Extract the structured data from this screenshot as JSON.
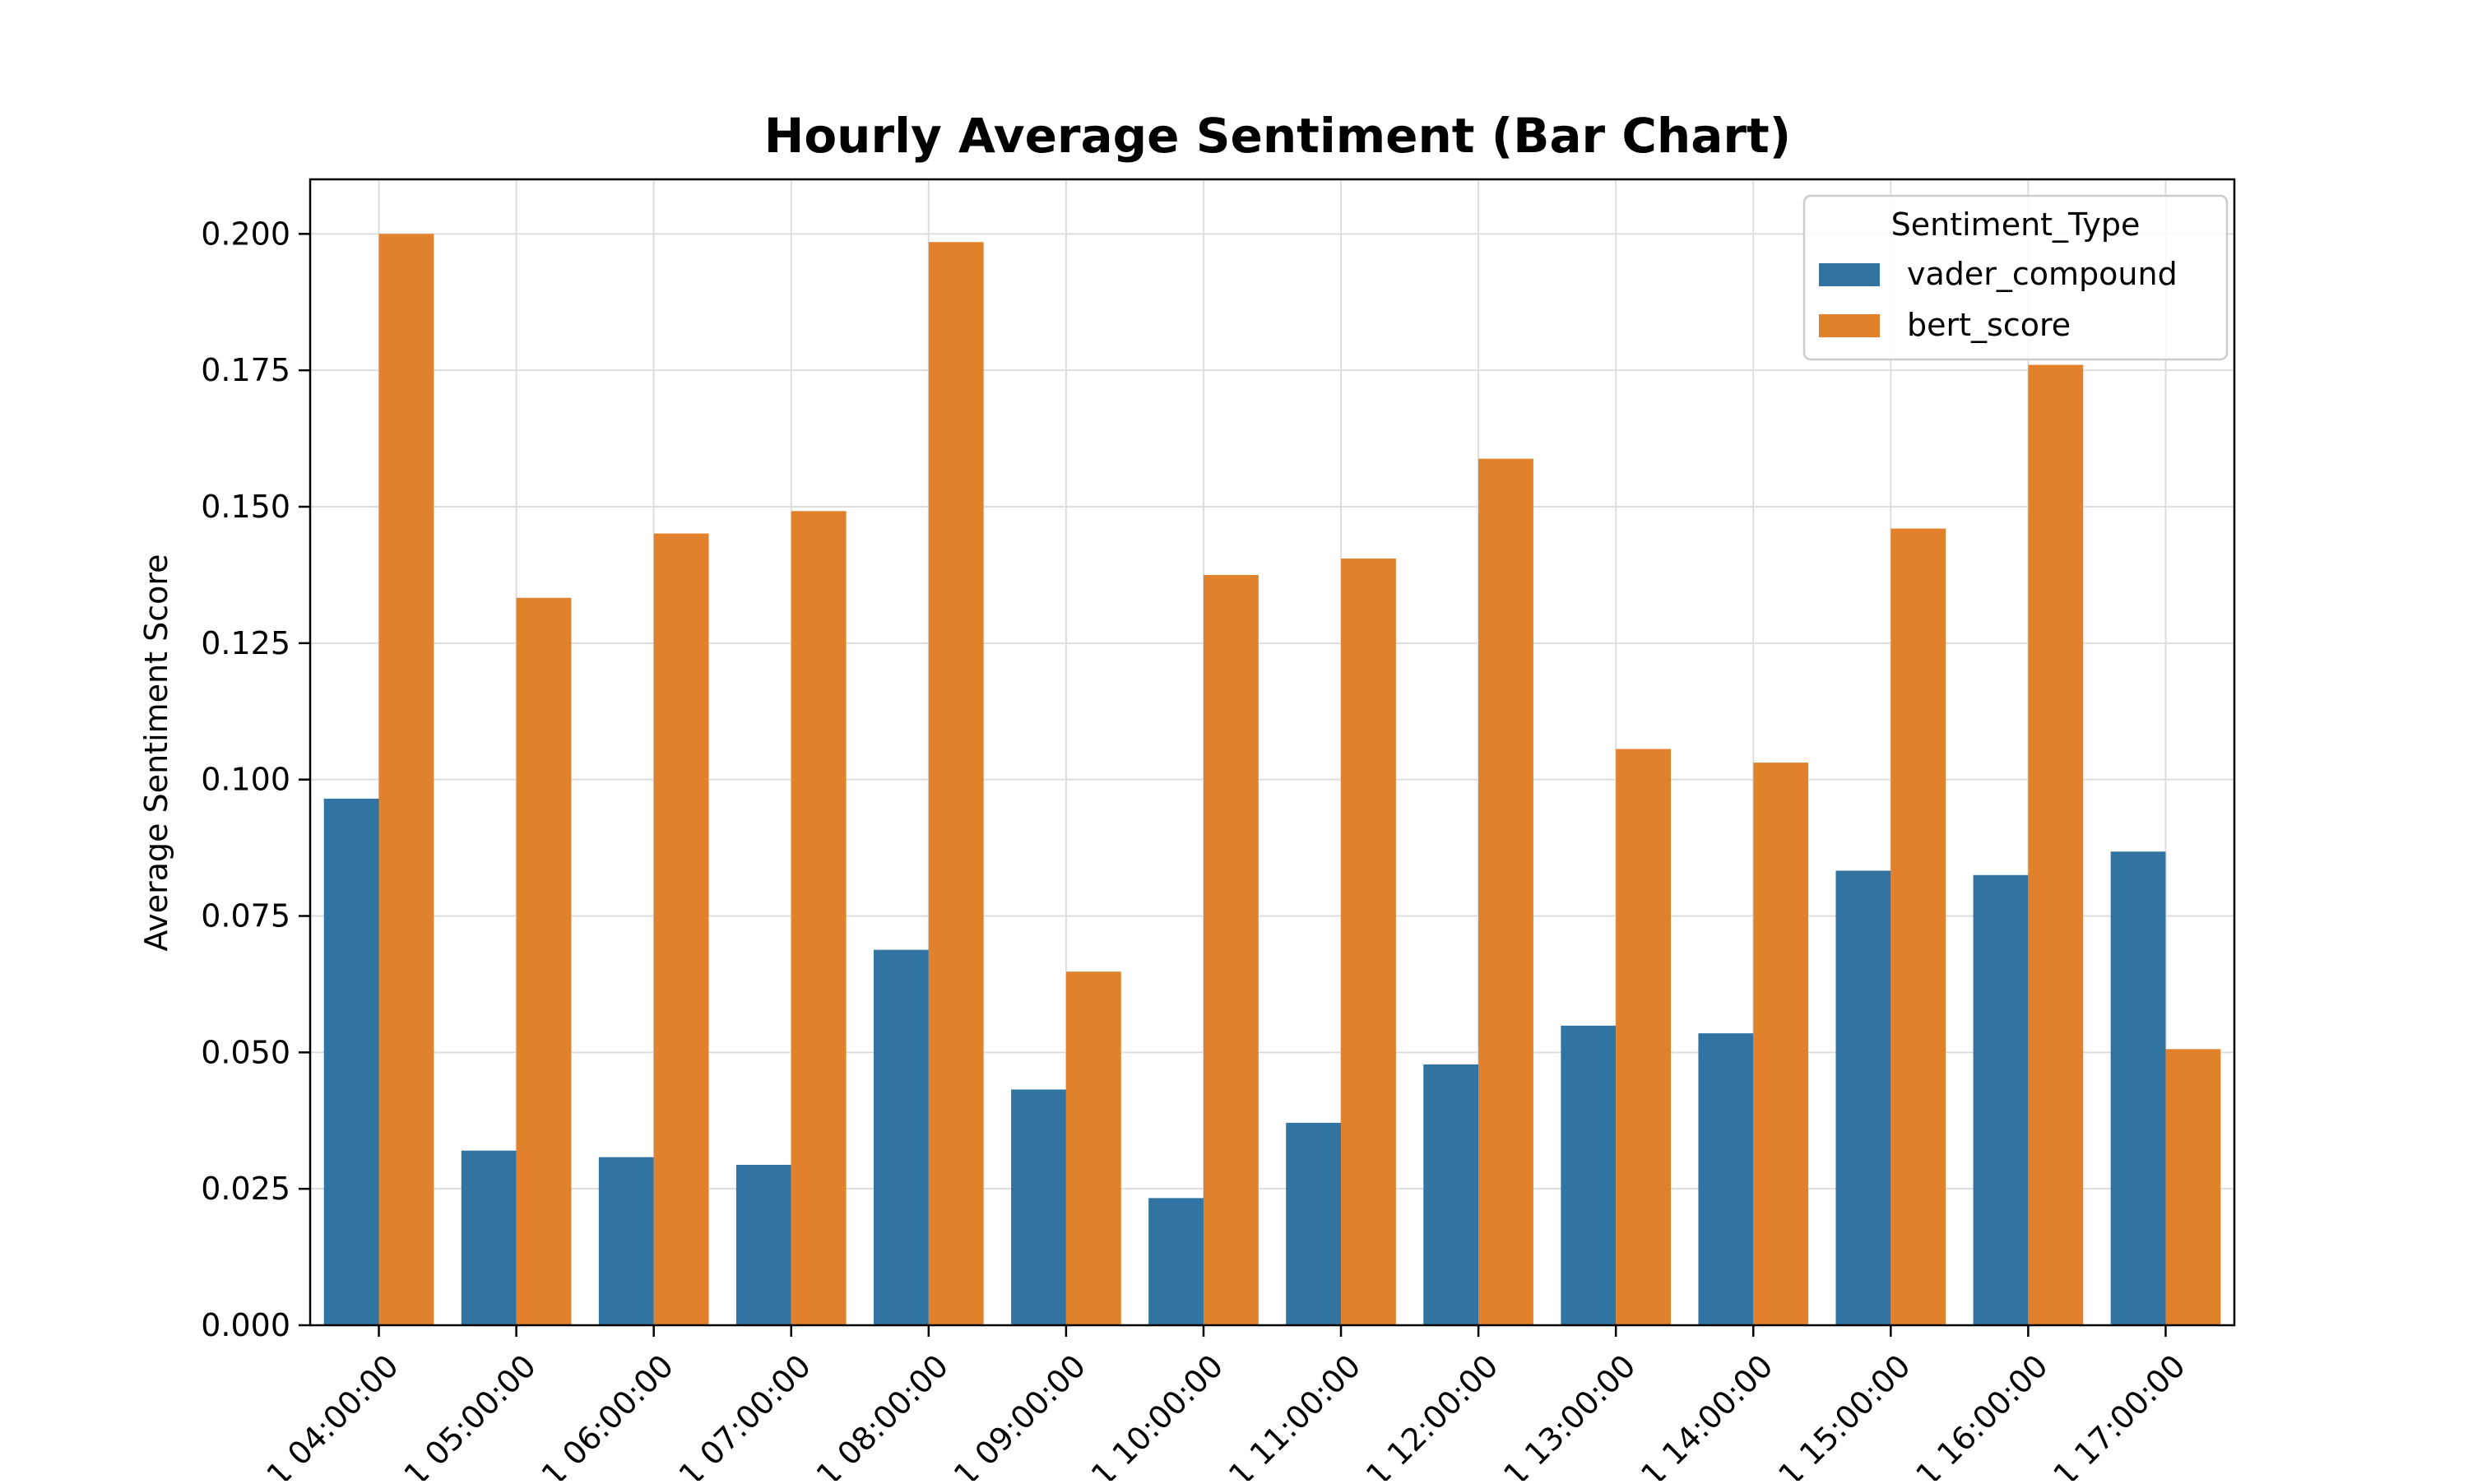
{
  "chart_data": {
    "type": "bar",
    "title": "Hourly Average Sentiment (Bar Chart)",
    "xlabel": "",
    "ylabel": "Average Sentiment Score",
    "ylim": [
      0,
      0.21
    ],
    "yticks": [
      "0.000",
      "0.025",
      "0.050",
      "0.075",
      "0.100",
      "0.125",
      "0.150",
      "0.175",
      "0.200"
    ],
    "categories": [
      "1 04:00:00",
      "1 05:00:00",
      "1 06:00:00",
      "1 07:00:00",
      "1 08:00:00",
      "1 09:00:00",
      "1 10:00:00",
      "1 11:00:00",
      "1 12:00:00",
      "1 13:00:00",
      "1 14:00:00",
      "1 15:00:00",
      "1 16:00:00",
      "1 17:00:00"
    ],
    "series": [
      {
        "name": "vader_compound",
        "color": "#3274a1",
        "values": [
          0.0965,
          0.032,
          0.0308,
          0.0294,
          0.0688,
          0.0432,
          0.0233,
          0.0371,
          0.0478,
          0.0549,
          0.0535,
          0.0833,
          0.0825,
          0.0868
        ]
      },
      {
        "name": "bert_score",
        "color": "#e1812c",
        "values": [
          0.2,
          0.1333,
          0.1451,
          0.1492,
          0.1985,
          0.0648,
          0.1375,
          0.1405,
          0.1588,
          0.1056,
          0.1031,
          0.146,
          0.176,
          0.0506
        ]
      }
    ],
    "legend": {
      "title": "Sentiment_Type",
      "placement": "upper right"
    },
    "grid": true
  }
}
